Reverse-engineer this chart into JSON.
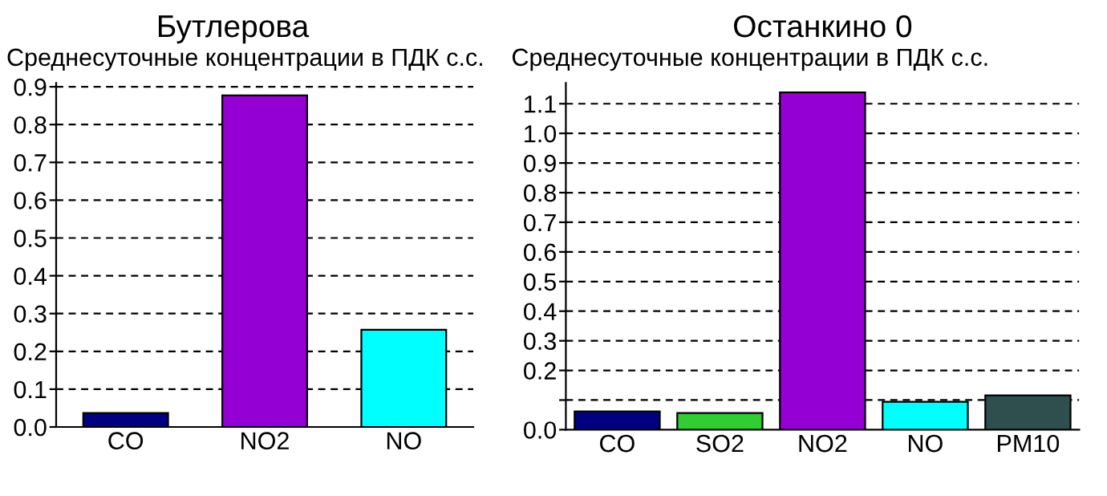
{
  "chart_data": [
    {
      "type": "bar",
      "title": "Бутлерова",
      "subtitle": "Среднесуточные концентрации в ПДК с.с.",
      "categories": [
        "CO",
        "NO2",
        "NO"
      ],
      "values": [
        0.037,
        0.877,
        0.257
      ],
      "colors": [
        "#000080",
        "#9400d3",
        "#00ffff"
      ],
      "ylim": [
        0,
        0.91
      ],
      "yticks": [
        {
          "value": 0,
          "label": "0.0"
        },
        0.1,
        0.2,
        0.3,
        0.4,
        0.5,
        0.6,
        0.7,
        0.8,
        0.9
      ],
      "grid": "y",
      "legend": false
    },
    {
      "type": "bar",
      "title": "Останкино 0",
      "subtitle": "Среднесуточные концентрации в ПДК с.с.",
      "categories": [
        "CO",
        "SO2",
        "NO2",
        "NO",
        "PM10"
      ],
      "values": [
        0.062,
        0.056,
        1.138,
        0.094,
        0.116
      ],
      "colors": [
        "#000080",
        "#32cd32",
        "#9400d3",
        "#00ffff",
        "#2f4f4f"
      ],
      "ylim": [
        0,
        1.17
      ],
      "yticks": [
        {
          "value": 0,
          "label": "0.0"
        },
        {
          "value": 0.1,
          "label": null
        },
        0.2,
        0.3,
        0.4,
        0.5,
        0.6,
        0.7,
        0.8,
        0.9,
        {
          "value": 1.0,
          "label": "1.0"
        },
        1.1
      ],
      "grid": "y",
      "legend": false
    }
  ]
}
